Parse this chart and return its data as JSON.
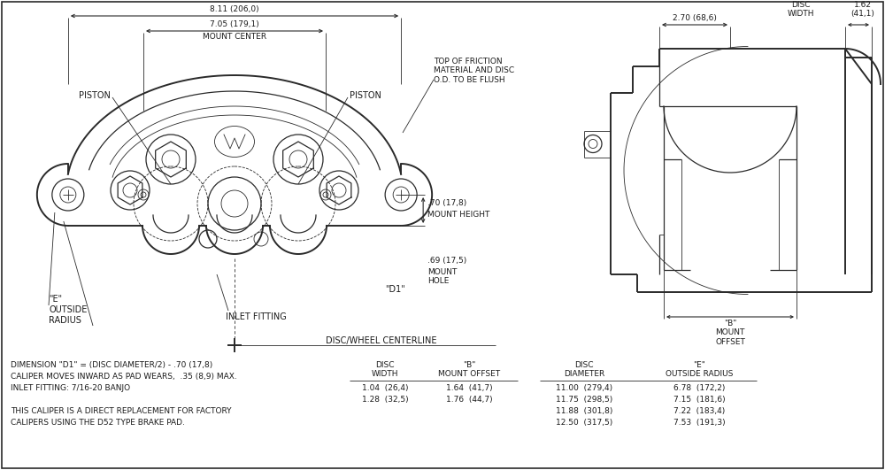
{
  "bg_color": "#ffffff",
  "line_color": "#2a2a2a",
  "text_color": "#1a1a1a",
  "fig_width": 10.0,
  "fig_height": 5.31,
  "notes_line1": "DIMENSION \"D1\" = (DISC DIAMETER/2) - .70 (17,8)",
  "notes_line2": "CALIPER MOVES INWARD AS PAD WEARS,  .35 (8,9) MAX.",
  "notes_line3": "INLET FITTING: 7/16-20 BANJO",
  "notes_line4": "THIS CALIPER IS A DIRECT REPLACEMENT FOR FACTORY",
  "notes_line5": "CALIPERS USING THE D52 TYPE BRAKE PAD.",
  "table1_rows": [
    [
      "1.04  (26,4)",
      "1.64  (41,7)"
    ],
    [
      "1.28  (32,5)",
      "1.76  (44,7)"
    ]
  ],
  "table2_rows": [
    [
      "11.00  (279,4)",
      "6.78  (172,2)"
    ],
    [
      "11.75  (298,5)",
      "7.15  (181,6)"
    ],
    [
      "11.88  (301,8)",
      "7.22  (183,4)"
    ],
    [
      "12.50  (317,5)",
      "7.53  (191,3)"
    ]
  ],
  "dim_811": "8.11 (206,0)",
  "dim_705": "7.05 (179,1)",
  "dim_270": "2.70 (68,6)",
  "dim_162": "1.62\n(41,1)"
}
